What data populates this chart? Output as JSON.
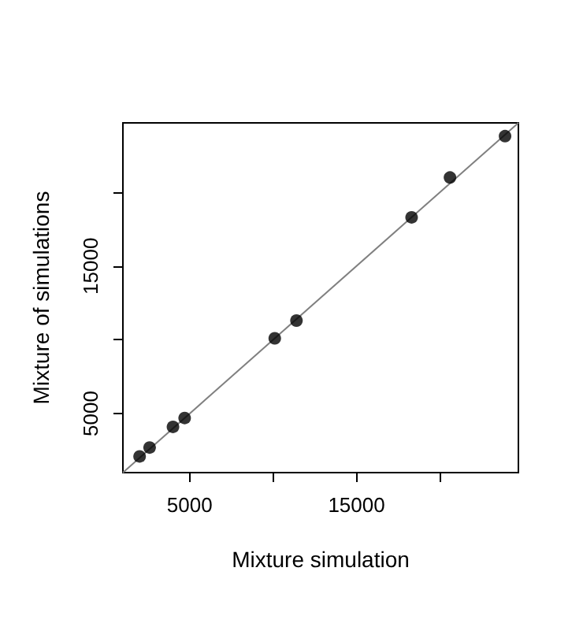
{
  "chart_data": {
    "type": "scatter",
    "xlabel": "Mixture simulation",
    "ylabel": "Mixture of simulations",
    "xlim": [
      1000,
      24700
    ],
    "ylim": [
      1000,
      24700
    ],
    "xticks": [
      5000,
      {
        "value": 10000,
        "label": null
      },
      15000,
      {
        "value": 20000,
        "label": null
      }
    ],
    "yticks": [
      5000,
      {
        "value": 10000,
        "label": null
      },
      15000,
      {
        "value": 20000,
        "label": null
      }
    ],
    "grid": false,
    "series": [
      {
        "color": "#000000",
        "marker": "circle",
        "x": [
          2000,
          2600,
          4000,
          4700,
          10100,
          11400,
          18300,
          20600,
          23900
        ],
        "values": [
          2100,
          2700,
          4100,
          4700,
          10100,
          11300,
          18300,
          21000,
          23800
        ]
      },
      {
        "type": "line",
        "color": "#808080",
        "marker": "none",
        "line_style": "solid",
        "x": [
          1000,
          24700
        ],
        "values": [
          1000,
          24700
        ]
      }
    ]
  }
}
